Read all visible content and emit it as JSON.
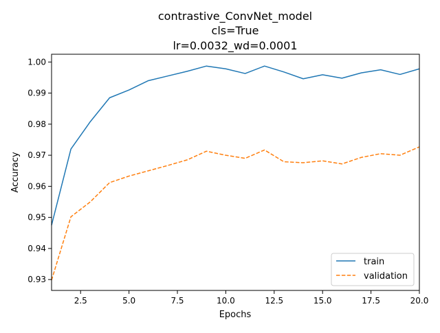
{
  "chart_data": {
    "type": "line",
    "title_lines": [
      "contrastive_ConvNet_model",
      "cls=True",
      "lr=0.0032_wd=0.0001"
    ],
    "xlabel": "Epochs",
    "ylabel": "Accuracy",
    "xlim": [
      1,
      20
    ],
    "ylim": [
      0.9265,
      1.0025
    ],
    "xticks": [
      2.5,
      5.0,
      7.5,
      10.0,
      12.5,
      15.0,
      17.5,
      20.0
    ],
    "xtick_labels": [
      "2.5",
      "5.0",
      "7.5",
      "10.0",
      "12.5",
      "15.0",
      "17.5",
      "20.0"
    ],
    "yticks": [
      0.93,
      0.94,
      0.95,
      0.96,
      0.97,
      0.98,
      0.99,
      1.0
    ],
    "ytick_labels": [
      "0.93",
      "0.94",
      "0.95",
      "0.96",
      "0.97",
      "0.98",
      "0.99",
      "1.00"
    ],
    "grid": false,
    "legend_position": "bottom-right",
    "x": [
      1,
      2,
      3,
      4,
      5,
      6,
      7,
      8,
      9,
      10,
      11,
      12,
      13,
      14,
      15,
      16,
      17,
      18,
      19,
      20
    ],
    "series": [
      {
        "name": "train",
        "color": "#1f77b4",
        "style": "solid",
        "values": [
          0.9475,
          0.972,
          0.9808,
          0.9885,
          0.991,
          0.994,
          0.9955,
          0.997,
          0.9987,
          0.9978,
          0.9963,
          0.9987,
          0.9968,
          0.9946,
          0.9959,
          0.9948,
          0.9965,
          0.9975,
          0.996,
          0.9978
        ]
      },
      {
        "name": "validation",
        "color": "#ff7f0e",
        "style": "dashed",
        "values": [
          0.9298,
          0.9502,
          0.955,
          0.9612,
          0.9633,
          0.965,
          0.9667,
          0.9685,
          0.9713,
          0.97,
          0.969,
          0.9717,
          0.9679,
          0.9676,
          0.9682,
          0.9672,
          0.9693,
          0.9705,
          0.97,
          0.9727
        ]
      }
    ]
  }
}
